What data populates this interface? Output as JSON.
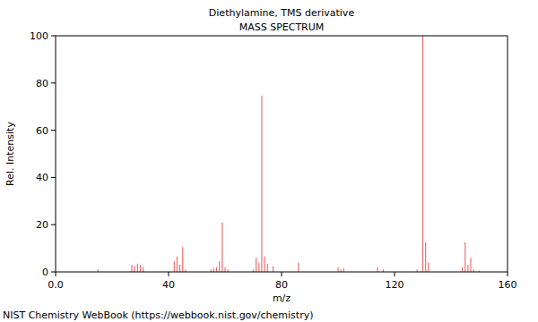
{
  "chart_data": {
    "type": "stem",
    "title": "Diethylamine, TMS derivative",
    "subtitle": "MASS SPECTRUM",
    "x_label": "m/z",
    "y_label": "Rel. Intensity",
    "annotation": "NIST Chemistry WebBook (https://webbook.nist.gov/chemistry)",
    "x": [
      15,
      27,
      28,
      29,
      30,
      31,
      42,
      43,
      44,
      45,
      46,
      55,
      56,
      57,
      58,
      59,
      60,
      61,
      70,
      71,
      72,
      73,
      74,
      75,
      77,
      86,
      100,
      101,
      102,
      114,
      116,
      128,
      130,
      131,
      132,
      144,
      145,
      146,
      147,
      148,
      150
    ],
    "values": [
      1,
      3,
      2.5,
      3.5,
      3,
      2,
      4.5,
      6.5,
      3,
      10.5,
      1,
      1,
      1.5,
      2,
      4.5,
      21,
      2,
      1,
      1,
      6,
      4,
      74.5,
      6.5,
      3.5,
      2.5,
      4,
      2,
      1,
      1.5,
      2,
      1,
      1,
      100,
      12.5,
      4,
      2,
      12.5,
      3,
      6,
      1,
      0.5
    ],
    "color": "#f07070",
    "xlim": [
      0,
      160
    ],
    "ylim": [
      0,
      100
    ],
    "xticks": [
      {
        "value": 0,
        "label": "0.0"
      },
      40,
      80,
      120,
      160
    ],
    "yticks": [
      0,
      20,
      40,
      60,
      80,
      100
    ],
    "grid": false
  }
}
